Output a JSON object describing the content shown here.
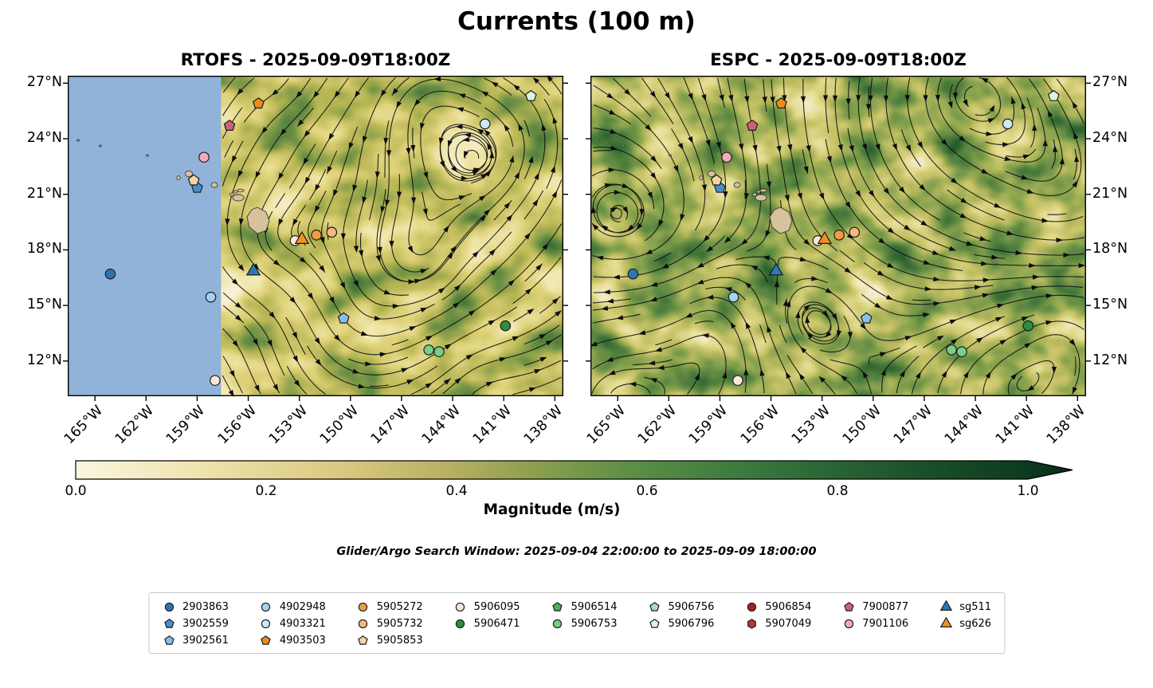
{
  "figure_title": "Currents (100 m)",
  "panels": [
    {
      "name": "RTOFS",
      "title": "RTOFS - 2025-09-09T18:00Z",
      "has_no_data_mask": true
    },
    {
      "name": "ESPC",
      "title": "ESPC - 2025-09-09T18:00Z",
      "has_no_data_mask": false
    }
  ],
  "axes": {
    "lat_ticks": [
      27,
      24,
      21,
      18,
      15,
      12
    ],
    "lat_tick_labels": [
      "27°N",
      "24°N",
      "21°N",
      "18°N",
      "15°N",
      "12°N"
    ],
    "lon_ticks": [
      -165,
      -162,
      -159,
      -156,
      -153,
      -150,
      -147,
      -144,
      -141,
      -138
    ],
    "lon_tick_labels": [
      "165°W",
      "162°W",
      "159°W",
      "156°W",
      "153°W",
      "150°W",
      "147°W",
      "144°W",
      "141°W",
      "138°W"
    ]
  },
  "colorbar": {
    "label": "Magnitude (m/s)",
    "tick_labels": [
      "0.0",
      "0.2",
      "0.4",
      "0.6",
      "0.8",
      "1.0"
    ],
    "tick_values": [
      0,
      0.2,
      0.4,
      0.6,
      0.8,
      1.0
    ],
    "min": 0.0,
    "max": 1.0,
    "extend": "max",
    "stops": [
      [
        0,
        "#faf6df"
      ],
      [
        0.13,
        "#efe3ae"
      ],
      [
        0.27,
        "#dcca82"
      ],
      [
        0.38,
        "#bcb264"
      ],
      [
        0.48,
        "#8da04f"
      ],
      [
        0.58,
        "#5d8f47"
      ],
      [
        0.7,
        "#3c7a3e"
      ],
      [
        0.82,
        "#265f31"
      ],
      [
        0.92,
        "#164a26"
      ],
      [
        1,
        "#0e3a1f"
      ]
    ],
    "extend_color": "#0a2a16"
  },
  "colors": {
    "land": "#d6c29b",
    "rtofs_no_data_region": "#91b3da",
    "streamline": "#0d0d0d"
  },
  "search_window_note": "Glider/Argo Search Window: 2025-09-04 22:00:00 to 2025-09-09 18:00:00",
  "legend": {
    "column_counts": [
      3,
      3,
      3,
      2,
      2,
      2,
      2,
      2,
      2
    ],
    "entries": [
      {
        "label": "2903863",
        "marker": "circle",
        "color": "#2e75b0"
      },
      {
        "label": "3902559",
        "marker": "pentagon",
        "color": "#4a90c8"
      },
      {
        "label": "3902561",
        "marker": "pentagon",
        "color": "#85c1e6"
      },
      {
        "label": "4902948",
        "marker": "circle",
        "color": "#a3d3ee"
      },
      {
        "label": "4903321",
        "marker": "circle",
        "color": "#cde8f6"
      },
      {
        "label": "4903503",
        "marker": "pentagon",
        "color": "#ee8a1f"
      },
      {
        "label": "5905272",
        "marker": "circle",
        "color": "#f29c42"
      },
      {
        "label": "5905732",
        "marker": "circle",
        "color": "#f6b77c"
      },
      {
        "label": "5905853",
        "marker": "pentagon",
        "color": "#f2d4a4"
      },
      {
        "label": "5906095",
        "marker": "circle",
        "color": "#fbe7da"
      },
      {
        "label": "5906471",
        "marker": "circle",
        "color": "#2e8f3f"
      },
      {
        "label": "5906514",
        "marker": "pentagon",
        "color": "#4fae57"
      },
      {
        "label": "5906753",
        "marker": "circle",
        "color": "#79ce88"
      },
      {
        "label": "5906756",
        "marker": "pentagon",
        "color": "#a6e0ae"
      },
      {
        "label": "5906796",
        "marker": "pentagon",
        "color": "#d9f3dd"
      },
      {
        "label": "5906854",
        "marker": "circle",
        "color": "#a81d22"
      },
      {
        "label": "5907049",
        "marker": "hexagon",
        "color": "#b93431"
      },
      {
        "label": "7900877",
        "marker": "pentagon",
        "color": "#ce6077"
      },
      {
        "label": "7901106",
        "marker": "circle",
        "color": "#f3abbc"
      },
      {
        "label": "sg511",
        "marker": "triangle",
        "color": "#2c79b6"
      },
      {
        "label": "sg626",
        "marker": "triangle",
        "color": "#f2921e"
      }
    ]
  },
  "chart_data": {
    "type": "streamplot_map",
    "title": "Currents (100 m)",
    "variable": "ocean current magnitude (m/s) at 100 m with streamlines",
    "valid_time": "2025-09-09T18:00Z",
    "models": [
      "RTOFS",
      "ESPC"
    ],
    "extent": {
      "lon": [
        -166.6,
        -137.5
      ],
      "lat": [
        10.1,
        27.4
      ]
    },
    "colorbar_range": [
      0.0,
      1.0
    ],
    "colorbar_extend": "max",
    "rtofs_mask_boundary_lon": -157.6,
    "platforms": [
      {
        "id": "2903863",
        "positions": [
          [
            -164.1,
            16.7
          ]
        ]
      },
      {
        "id": "3902559",
        "positions": [
          [
            -159.0,
            21.35
          ]
        ]
      },
      {
        "id": "3902561",
        "positions": [
          [
            -150.4,
            14.3
          ]
        ]
      },
      {
        "id": "4902948",
        "positions": [
          [
            -158.2,
            15.45
          ]
        ]
      },
      {
        "id": "4903321",
        "positions": [
          [
            -142.1,
            24.8
          ]
        ]
      },
      {
        "id": "4903503",
        "positions": [
          [
            -155.4,
            25.9
          ]
        ]
      },
      {
        "id": "5905272",
        "positions": [
          [
            -152.0,
            18.8
          ]
        ]
      },
      {
        "id": "5905732",
        "positions": [
          [
            -151.1,
            18.95
          ]
        ]
      },
      {
        "id": "5905853",
        "positions": [
          [
            -159.2,
            21.75
          ]
        ]
      },
      {
        "id": "5906095",
        "positions": [
          [
            -153.25,
            18.5
          ],
          [
            -157.95,
            10.95
          ]
        ]
      },
      {
        "id": "5906471",
        "positions": [
          [
            -140.9,
            13.9
          ]
        ]
      },
      {
        "id": "5906514",
        "positions": []
      },
      {
        "id": "5906753",
        "positions": [
          [
            -145.4,
            12.6
          ],
          [
            -144.8,
            12.5
          ]
        ]
      },
      {
        "id": "5906756",
        "positions": []
      },
      {
        "id": "5906796",
        "positions": [
          [
            -139.4,
            26.3
          ]
        ]
      },
      {
        "id": "5906854",
        "positions": []
      },
      {
        "id": "5907049",
        "positions": []
      },
      {
        "id": "7900877",
        "positions": [
          [
            -157.1,
            24.7
          ]
        ]
      },
      {
        "id": "7901106",
        "positions": [
          [
            -158.6,
            23.0
          ]
        ]
      },
      {
        "id": "sg511",
        "positions": [
          [
            -155.7,
            16.85
          ]
        ]
      },
      {
        "id": "sg626",
        "positions": [
          [
            -152.85,
            18.55
          ]
        ]
      }
    ]
  }
}
